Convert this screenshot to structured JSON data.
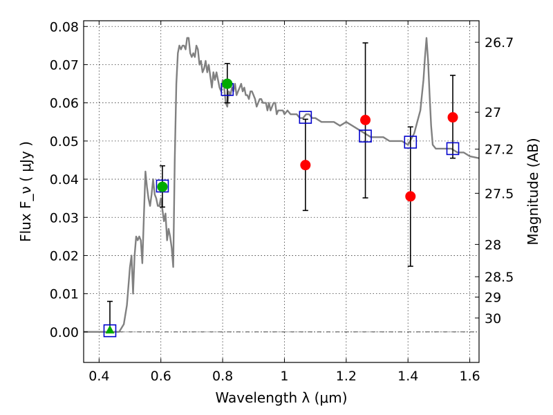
{
  "chart_data": {
    "type": "scatter",
    "xlabel": "Wavelength  λ (μm)",
    "ylabel": "Flux  F_ν  ( μJy )",
    "ylabel_right": "Magnitude (AB)",
    "xlim": [
      0.35,
      1.63
    ],
    "ylim": [
      -0.008,
      0.0815
    ],
    "x_ticks": [
      0.4,
      0.6,
      0.8,
      1.0,
      1.2,
      1.4,
      1.6
    ],
    "x_tick_labels": [
      "0.4",
      "0.6",
      "0.8",
      "1",
      "1.2",
      "1.4",
      "1.6"
    ],
    "y_ticks": [
      0.0,
      0.01,
      0.02,
      0.03,
      0.04,
      0.05,
      0.06,
      0.07,
      0.08
    ],
    "y_tick_labels": [
      "0.00",
      "0.01",
      "0.02",
      "0.03",
      "0.04",
      "0.05",
      "0.06",
      "0.07",
      "0.08"
    ],
    "right_ticks": [
      {
        "label": "26.7",
        "mag": 26.7
      },
      {
        "label": "27",
        "mag": 27.0
      },
      {
        "label": "27.2",
        "mag": 27.2
      },
      {
        "label": "27.5",
        "mag": 27.5
      },
      {
        "label": "28",
        "mag": 28.0
      },
      {
        "label": "28.5",
        "mag": 28.5
      },
      {
        "label": "29",
        "mag": 29.0
      },
      {
        "label": "30",
        "mag": 30.0
      }
    ],
    "grid": true,
    "colors": {
      "model": "#808080",
      "model_points": "#0000cc",
      "observed": "#ff0000",
      "upper": "#00aa00",
      "errorbar": "#000000"
    },
    "model_spectrum": {
      "x": [
        0.35,
        0.45,
        0.465,
        0.48,
        0.49,
        0.5,
        0.505,
        0.51,
        0.515,
        0.52,
        0.525,
        0.53,
        0.535,
        0.54,
        0.545,
        0.55,
        0.555,
        0.56,
        0.565,
        0.57,
        0.575,
        0.58,
        0.585,
        0.59,
        0.595,
        0.6,
        0.605,
        0.61,
        0.615,
        0.62,
        0.625,
        0.63,
        0.635,
        0.64,
        0.645,
        0.65,
        0.655,
        0.66,
        0.665,
        0.67,
        0.675,
        0.68,
        0.685,
        0.69,
        0.695,
        0.7,
        0.705,
        0.71,
        0.715,
        0.72,
        0.725,
        0.73,
        0.735,
        0.74,
        0.745,
        0.75,
        0.755,
        0.76,
        0.765,
        0.77,
        0.775,
        0.78,
        0.785,
        0.79,
        0.795,
        0.8,
        0.805,
        0.81,
        0.815,
        0.82,
        0.825,
        0.83,
        0.835,
        0.84,
        0.845,
        0.85,
        0.855,
        0.86,
        0.865,
        0.87,
        0.875,
        0.88,
        0.885,
        0.89,
        0.895,
        0.9,
        0.905,
        0.91,
        0.915,
        0.92,
        0.925,
        0.93,
        0.935,
        0.94,
        0.945,
        0.95,
        0.955,
        0.96,
        0.965,
        0.97,
        0.975,
        0.98,
        0.985,
        0.99,
        0.995,
        1.0,
        1.01,
        1.02,
        1.03,
        1.04,
        1.05,
        1.06,
        1.07,
        1.08,
        1.09,
        1.1,
        1.12,
        1.14,
        1.16,
        1.18,
        1.2,
        1.22,
        1.24,
        1.26,
        1.28,
        1.3,
        1.32,
        1.34,
        1.36,
        1.38,
        1.4,
        1.42,
        1.43,
        1.44,
        1.45,
        1.455,
        1.46,
        1.465,
        1.47,
        1.475,
        1.48,
        1.49,
        1.5,
        1.52,
        1.54,
        1.56,
        1.58,
        1.6,
        1.63
      ],
      "y": [
        0.0,
        0.0,
        0.0,
        0.002,
        0.007,
        0.017,
        0.02,
        0.01,
        0.02,
        0.025,
        0.024,
        0.025,
        0.024,
        0.018,
        0.03,
        0.042,
        0.038,
        0.035,
        0.033,
        0.036,
        0.04,
        0.036,
        0.035,
        0.033,
        0.033,
        0.035,
        0.032,
        0.029,
        0.031,
        0.024,
        0.027,
        0.025,
        0.022,
        0.017,
        0.045,
        0.065,
        0.073,
        0.075,
        0.074,
        0.075,
        0.075,
        0.074,
        0.077,
        0.077,
        0.073,
        0.072,
        0.073,
        0.072,
        0.075,
        0.074,
        0.07,
        0.071,
        0.068,
        0.069,
        0.071,
        0.068,
        0.07,
        0.067,
        0.064,
        0.068,
        0.066,
        0.068,
        0.066,
        0.064,
        0.063,
        0.066,
        0.064,
        0.06,
        0.059,
        0.063,
        0.062,
        0.064,
        0.063,
        0.065,
        0.062,
        0.063,
        0.064,
        0.065,
        0.063,
        0.064,
        0.062,
        0.062,
        0.061,
        0.063,
        0.063,
        0.062,
        0.061,
        0.059,
        0.06,
        0.061,
        0.061,
        0.06,
        0.06,
        0.06,
        0.058,
        0.06,
        0.058,
        0.059,
        0.06,
        0.06,
        0.057,
        0.058,
        0.058,
        0.058,
        0.058,
        0.057,
        0.058,
        0.057,
        0.057,
        0.057,
        0.056,
        0.056,
        0.057,
        0.057,
        0.056,
        0.056,
        0.055,
        0.055,
        0.055,
        0.054,
        0.055,
        0.054,
        0.053,
        0.052,
        0.051,
        0.051,
        0.051,
        0.05,
        0.05,
        0.05,
        0.049,
        0.052,
        0.055,
        0.058,
        0.066,
        0.072,
        0.077,
        0.071,
        0.062,
        0.054,
        0.049,
        0.048,
        0.048,
        0.048,
        0.048,
        0.047,
        0.047,
        0.046,
        0.0455
      ]
    },
    "series": [
      {
        "marker": "square-open",
        "x": [
          0.435,
          0.605,
          0.815,
          1.068,
          1.262,
          1.408,
          1.545
        ],
        "y": [
          0.0003,
          0.0382,
          0.0635,
          0.0562,
          0.0513,
          0.0497,
          0.048
        ]
      },
      {
        "marker": "circle",
        "x": [
          1.068,
          1.262,
          1.408,
          1.545
        ],
        "y": [
          0.0437,
          0.0555,
          0.0355,
          0.0562
        ],
        "yerr_low": [
          0.0318,
          0.0351,
          0.0172,
          0.0455
        ],
        "yerr_high": [
          0.0557,
          0.0757,
          0.0537,
          0.0672
        ]
      },
      {
        "marker": "circle",
        "x": [
          0.605,
          0.815
        ],
        "y": [
          0.038,
          0.065
        ],
        "yerr_low": [
          0.0327,
          0.06
        ],
        "yerr_high": [
          0.0435,
          0.0703
        ]
      },
      {
        "marker": "triangle",
        "x": [
          0.435
        ],
        "y": [
          0.0005
        ],
        "yerr_low": [
          0.0
        ],
        "yerr_high": [
          0.008
        ]
      }
    ]
  }
}
